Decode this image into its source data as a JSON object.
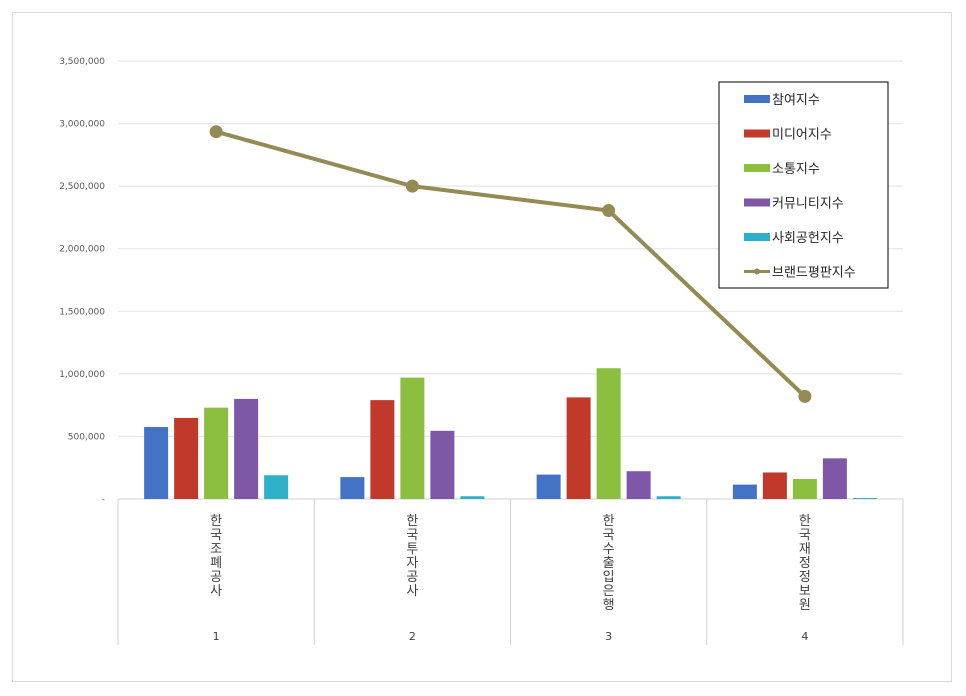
{
  "chart_data": {
    "type": "bar",
    "y_ticks": [
      "-",
      "500,000",
      "1,000,000",
      "1,500,000",
      "2,000,000",
      "2,500,000",
      "3,000,000",
      "3,500,000"
    ],
    "ylim": [
      0,
      3500000
    ],
    "grid": true,
    "legend_position": "top-right",
    "categories": [
      {
        "index": "1",
        "name": "한국조폐공사"
      },
      {
        "index": "2",
        "name": "한국투자공사"
      },
      {
        "index": "3",
        "name": "한국수출입은행"
      },
      {
        "index": "4",
        "name": "한국재정정보원"
      }
    ],
    "series": [
      {
        "name": "참여지수",
        "kind": "bar",
        "color": "#4472c4",
        "values": [
          575000,
          175000,
          195000,
          115000
        ]
      },
      {
        "name": "미디어지수",
        "kind": "bar",
        "color": "#c0392b",
        "values": [
          648000,
          790000,
          812000,
          212000
        ]
      },
      {
        "name": "소통지수",
        "kind": "bar",
        "color": "#8cbf3f",
        "values": [
          730000,
          970000,
          1045000,
          160000
        ]
      },
      {
        "name": "커뮤니티지수",
        "kind": "bar",
        "color": "#7e57a6",
        "values": [
          800000,
          545000,
          222000,
          325000
        ]
      },
      {
        "name": "사회공헌지수",
        "kind": "bar",
        "color": "#2eb0c8",
        "values": [
          190000,
          22000,
          22000,
          8000
        ]
      },
      {
        "name": "브랜드평판지수",
        "kind": "line",
        "color": "#948a54",
        "values": [
          2935000,
          2500000,
          2305000,
          820000
        ]
      }
    ]
  }
}
